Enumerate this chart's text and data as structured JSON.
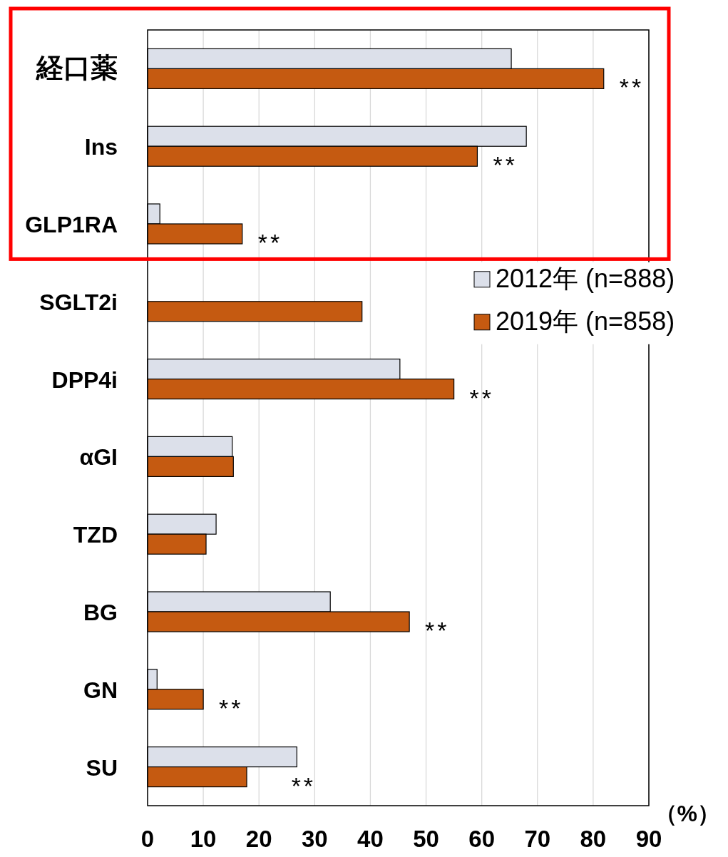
{
  "chart_data": {
    "type": "bar",
    "orientation": "horizontal",
    "categories": [
      "経口薬",
      "Ins",
      "GLP1RA",
      "SGLT2i",
      "DPP4i",
      "αGI",
      "TZD",
      "BG",
      "GN",
      "SU"
    ],
    "series": [
      {
        "name": "2012年 (n=888)",
        "color": "#dce0ea",
        "values": [
          65.3,
          68.0,
          2.2,
          null,
          45.3,
          15.2,
          12.3,
          32.8,
          1.7,
          26.8
        ]
      },
      {
        "name": "2019年 (n=858)",
        "color": "#c55a11",
        "values": [
          81.9,
          59.2,
          17.0,
          38.5,
          55.0,
          15.4,
          10.5,
          47.0,
          10.0,
          17.8
        ]
      }
    ],
    "xlim": [
      0,
      90
    ],
    "xticks": [
      0,
      10,
      20,
      30,
      40,
      50,
      60,
      70,
      80,
      90
    ],
    "xlabel": "（%）",
    "grid": "x",
    "legend": "right",
    "annotations": [
      {
        "text": "**",
        "x": 81.9,
        "y": "経口薬"
      },
      {
        "text": "**",
        "x": 59.2,
        "y": "Ins"
      },
      {
        "text": "**",
        "x": 17.0,
        "y": "GLP1RA"
      },
      {
        "text": "**",
        "x": 55.0,
        "y": "DPP4i"
      },
      {
        "text": "**",
        "x": 47.0,
        "y": "BG"
      },
      {
        "text": "**",
        "x": 10.0,
        "y": "GN"
      },
      {
        "text": "**",
        "x": 23.0,
        "y": "SU"
      }
    ]
  }
}
